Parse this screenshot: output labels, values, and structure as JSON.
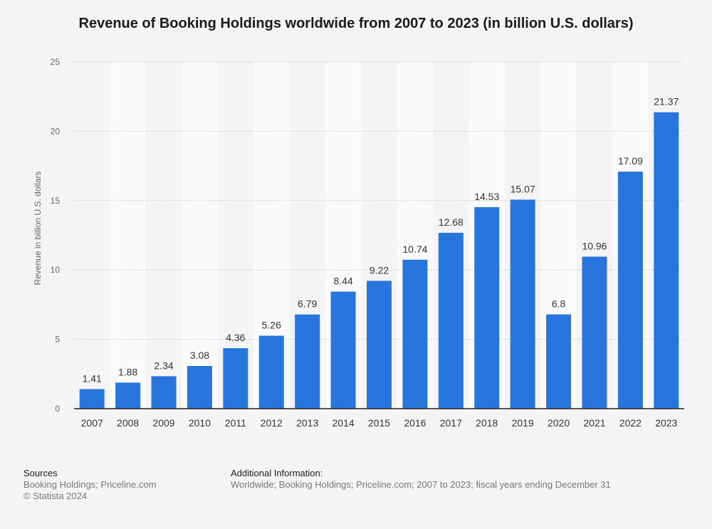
{
  "chart_data": {
    "type": "bar",
    "title": "Revenue of Booking Holdings worldwide from 2007 to 2023 (in billion U.S. dollars)",
    "xlabel": "",
    "ylabel": "Revenue in billion U.S. dollars",
    "ylim": [
      0,
      25
    ],
    "yticks": [
      0,
      5,
      10,
      15,
      20,
      25
    ],
    "categories": [
      "2007",
      "2008",
      "2009",
      "2010",
      "2011",
      "2012",
      "2013",
      "2014",
      "2015",
      "2016",
      "2017",
      "2018",
      "2019",
      "2020",
      "2021",
      "2022",
      "2023"
    ],
    "values": [
      1.41,
      1.88,
      2.34,
      3.08,
      4.36,
      5.26,
      6.79,
      8.44,
      9.22,
      10.74,
      12.68,
      14.53,
      15.07,
      6.8,
      10.96,
      17.09,
      21.37
    ],
    "value_labels": [
      "1.41",
      "1.88",
      "2.34",
      "3.08",
      "4.36",
      "5.26",
      "6.79",
      "8.44",
      "9.22",
      "10.74",
      "12.68",
      "14.53",
      "15.07",
      "6.8",
      "10.96",
      "17.09",
      "21.37"
    ],
    "bar_color": "#2876dd",
    "grid": true
  },
  "footer": {
    "sources_heading": "Sources",
    "sources_line1": "Booking Holdings; Priceline.com",
    "sources_line2": "© Statista 2024",
    "additional_heading": "Additional Information:",
    "additional_text": "Worldwide; Booking Holdings; Priceline.com; 2007 to 2023; fiscal years ending December 31"
  }
}
